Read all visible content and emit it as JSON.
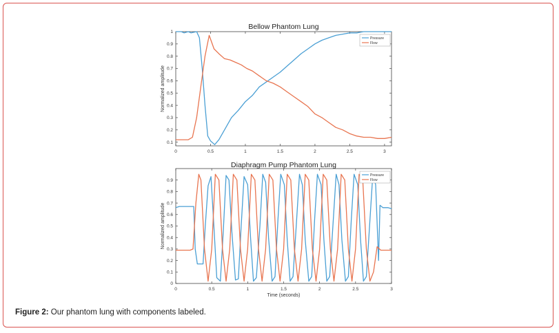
{
  "caption": {
    "label": "Figure 2:",
    "text": " Our phantom lung with components labeled."
  },
  "colors": {
    "pressure": "#4a9fd4",
    "flow": "#e8744f",
    "axis": "#444444",
    "frame": "#d9534f"
  },
  "chart_data": [
    {
      "type": "line",
      "title": "Bellow Phantom Lung",
      "xlabel": "",
      "ylabel": "Normalized amplitude",
      "xlim": [
        0,
        3.1
      ],
      "ylim": [
        0.07,
        1
      ],
      "xticks": [
        0,
        0.5,
        1,
        1.5,
        2,
        2.5,
        3
      ],
      "xtick_labels": [
        "0",
        "0.5",
        "1",
        "1.5",
        "2",
        "2.5",
        "3"
      ],
      "yticks": [
        0.1,
        0.2,
        0.3,
        0.4,
        0.5,
        0.6,
        0.7,
        0.8,
        0.9,
        1
      ],
      "ytick_labels": [
        "0.1",
        "0.2",
        "0.3",
        "0.4",
        "0.5",
        "0.6",
        "0.7",
        "0.8",
        "0.9",
        "1"
      ],
      "legend": {
        "position": "top-right",
        "entries": [
          "Pressure",
          "Flow"
        ]
      },
      "series": [
        {
          "name": "Pressure",
          "color": "#4a9fd4",
          "x": [
            0,
            0.08,
            0.12,
            0.18,
            0.22,
            0.3,
            0.34,
            0.38,
            0.42,
            0.46,
            0.5,
            0.56,
            0.62,
            0.7,
            0.8,
            0.9,
            1.0,
            1.1,
            1.2,
            1.3,
            1.4,
            1.5,
            1.6,
            1.7,
            1.8,
            1.9,
            2.0,
            2.1,
            2.2,
            2.3,
            2.4,
            2.5,
            2.6,
            2.7,
            2.8,
            2.9,
            3.0,
            3.1
          ],
          "values": [
            1.0,
            1.0,
            0.99,
            1.0,
            0.99,
            1.0,
            0.95,
            0.7,
            0.4,
            0.15,
            0.11,
            0.08,
            0.12,
            0.2,
            0.3,
            0.36,
            0.43,
            0.48,
            0.55,
            0.59,
            0.63,
            0.67,
            0.72,
            0.77,
            0.82,
            0.86,
            0.9,
            0.93,
            0.95,
            0.97,
            0.98,
            0.99,
            0.99,
            1.0,
            1.0,
            1.0,
            1.0,
            1.0
          ]
        },
        {
          "name": "Flow",
          "color": "#e8744f",
          "x": [
            0,
            0.08,
            0.12,
            0.18,
            0.24,
            0.3,
            0.36,
            0.42,
            0.48,
            0.55,
            0.62,
            0.7,
            0.78,
            0.86,
            0.94,
            1.02,
            1.1,
            1.2,
            1.3,
            1.4,
            1.5,
            1.6,
            1.7,
            1.8,
            1.9,
            2.0,
            2.1,
            2.2,
            2.3,
            2.4,
            2.5,
            2.6,
            2.7,
            2.8,
            2.9,
            3.0,
            3.1
          ],
          "values": [
            0.12,
            0.12,
            0.12,
            0.12,
            0.14,
            0.3,
            0.55,
            0.8,
            0.97,
            0.86,
            0.82,
            0.78,
            0.77,
            0.75,
            0.73,
            0.7,
            0.68,
            0.64,
            0.6,
            0.58,
            0.55,
            0.51,
            0.47,
            0.43,
            0.39,
            0.33,
            0.3,
            0.26,
            0.22,
            0.2,
            0.17,
            0.15,
            0.14,
            0.14,
            0.13,
            0.13,
            0.14
          ]
        }
      ]
    },
    {
      "type": "line",
      "title": "Diaphragm Pump Phantom Lung",
      "xlabel": "Time (seconds)",
      "ylabel": "Normalized amplitude",
      "xlim": [
        0,
        3
      ],
      "ylim": [
        0,
        1
      ],
      "xticks": [
        0,
        0.5,
        1,
        1.5,
        2,
        2.5,
        3
      ],
      "xtick_labels": [
        "0",
        "0.5",
        "1",
        "1.5",
        "2",
        "2.5",
        "3"
      ],
      "yticks": [
        0,
        0.1,
        0.2,
        0.3,
        0.4,
        0.5,
        0.6,
        0.7,
        0.8,
        0.9
      ],
      "ytick_labels": [
        "0",
        "0.1",
        "0.2",
        "0.3",
        "0.4",
        "0.5",
        "0.6",
        "0.7",
        "0.8",
        "0.9"
      ],
      "legend": {
        "position": "top-right",
        "entries": [
          "Pressure",
          "Flow"
        ]
      },
      "series": [
        {
          "name": "Pressure",
          "color": "#4a9fd4",
          "x": [
            0,
            0.05,
            0.1,
            0.2,
            0.25,
            0.27,
            0.3,
            0.38,
            0.41,
            0.45,
            0.49,
            0.53,
            0.57,
            0.62,
            0.66,
            0.7,
            0.74,
            0.78,
            0.83,
            0.87,
            0.91,
            0.95,
            1.0,
            1.04,
            1.08,
            1.12,
            1.17,
            1.21,
            1.25,
            1.29,
            1.34,
            1.38,
            1.42,
            1.46,
            1.51,
            1.55,
            1.59,
            1.63,
            1.68,
            1.72,
            1.76,
            1.8,
            1.85,
            1.89,
            1.93,
            1.97,
            2.02,
            2.06,
            2.1,
            2.14,
            2.19,
            2.23,
            2.27,
            2.31,
            2.36,
            2.4,
            2.44,
            2.48,
            2.53,
            2.57,
            2.61,
            2.65,
            2.7,
            2.74,
            2.78,
            2.82,
            2.84,
            2.88,
            2.95,
            3.0
          ],
          "values": [
            0.66,
            0.67,
            0.67,
            0.67,
            0.67,
            0.3,
            0.17,
            0.17,
            0.5,
            0.85,
            0.93,
            0.5,
            0.05,
            0.02,
            0.45,
            0.94,
            0.9,
            0.45,
            0.03,
            0.04,
            0.5,
            0.93,
            0.86,
            0.4,
            0.02,
            0.05,
            0.5,
            0.95,
            0.88,
            0.4,
            0.02,
            0.06,
            0.55,
            0.95,
            0.86,
            0.38,
            0.02,
            0.06,
            0.55,
            0.95,
            0.86,
            0.38,
            0.02,
            0.06,
            0.55,
            0.95,
            0.86,
            0.38,
            0.02,
            0.06,
            0.55,
            0.95,
            0.86,
            0.38,
            0.02,
            0.06,
            0.55,
            0.95,
            0.86,
            0.38,
            0.02,
            0.06,
            0.55,
            0.95,
            0.86,
            0.2,
            0.68,
            0.66,
            0.66,
            0.65
          ]
        },
        {
          "name": "Flow",
          "color": "#e8744f",
          "x": [
            0,
            0.1,
            0.2,
            0.24,
            0.28,
            0.32,
            0.35,
            0.4,
            0.45,
            0.5,
            0.55,
            0.6,
            0.65,
            0.7,
            0.75,
            0.8,
            0.85,
            0.9,
            0.95,
            1.0,
            1.05,
            1.1,
            1.15,
            1.2,
            1.25,
            1.3,
            1.35,
            1.4,
            1.45,
            1.5,
            1.55,
            1.6,
            1.65,
            1.7,
            1.75,
            1.8,
            1.85,
            1.9,
            1.95,
            2.0,
            2.05,
            2.1,
            2.15,
            2.2,
            2.25,
            2.3,
            2.35,
            2.4,
            2.45,
            2.5,
            2.55,
            2.6,
            2.65,
            2.7,
            2.75,
            2.8,
            2.85,
            2.9,
            3.0
          ],
          "values": [
            0.29,
            0.29,
            0.29,
            0.3,
            0.7,
            0.95,
            0.9,
            0.3,
            0.02,
            0.3,
            0.95,
            0.9,
            0.3,
            0.02,
            0.3,
            0.95,
            0.9,
            0.3,
            0.02,
            0.3,
            0.95,
            0.9,
            0.3,
            0.02,
            0.3,
            0.95,
            0.9,
            0.3,
            0.02,
            0.3,
            0.95,
            0.9,
            0.3,
            0.02,
            0.3,
            0.95,
            0.9,
            0.3,
            0.02,
            0.3,
            0.95,
            0.9,
            0.3,
            0.02,
            0.3,
            0.95,
            0.9,
            0.3,
            0.02,
            0.3,
            0.95,
            0.9,
            0.3,
            0.02,
            0.1,
            0.32,
            0.29,
            0.29,
            0.29
          ]
        }
      ]
    }
  ]
}
